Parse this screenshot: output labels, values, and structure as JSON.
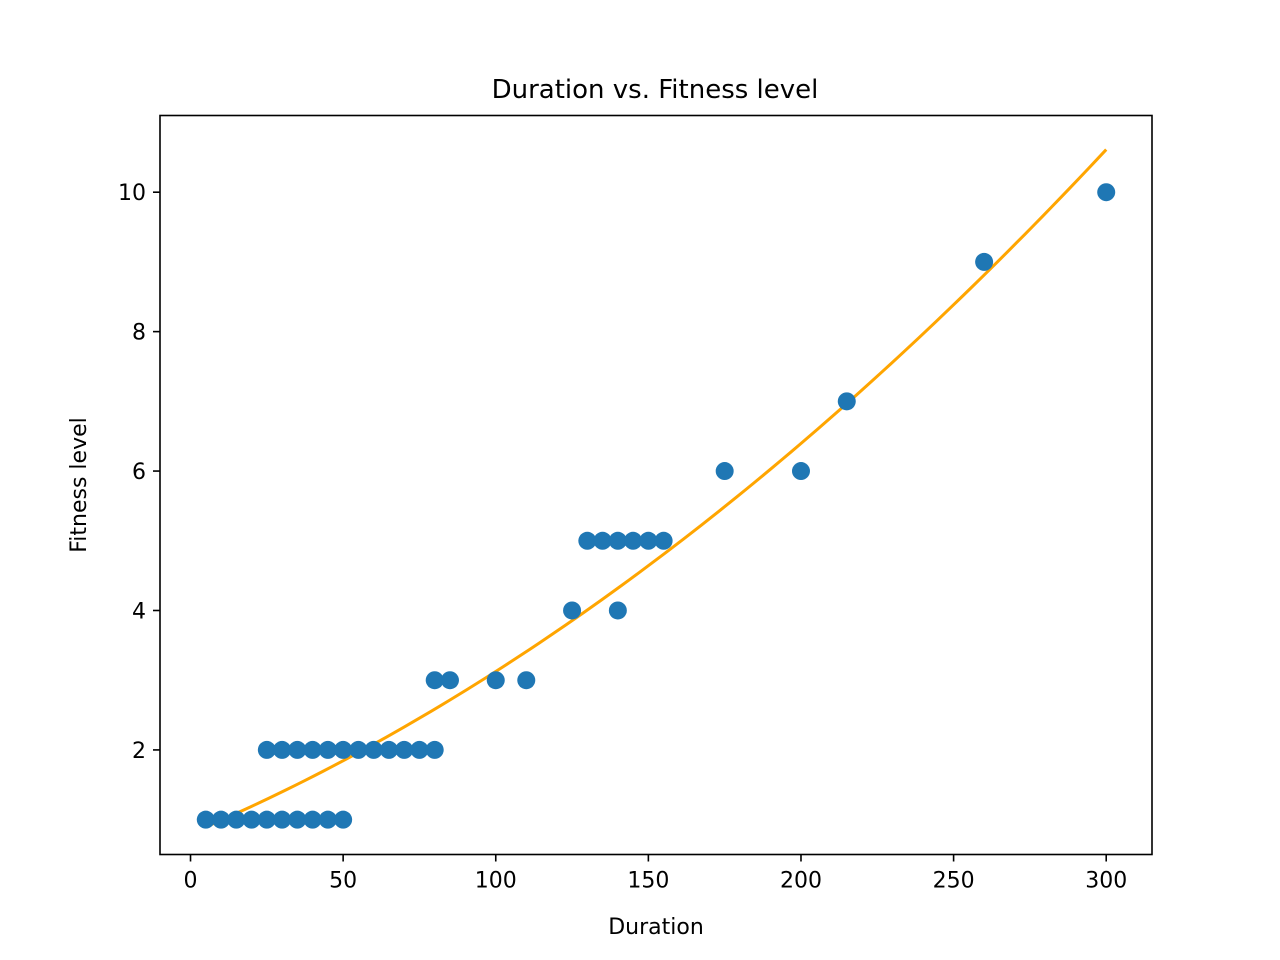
{
  "chart_data": {
    "type": "scatter",
    "title": "Duration vs. Fitness level",
    "xlabel": "Duration",
    "ylabel": "Fitness level",
    "xlim": [
      -10,
      315
    ],
    "ylim": [
      0.5,
      11.1
    ],
    "x_ticks": [
      0,
      50,
      100,
      150,
      200,
      250,
      300
    ],
    "y_ticks": [
      2,
      4,
      6,
      8,
      10
    ],
    "grid": false,
    "series": [
      {
        "kind": "scatter",
        "color": "#1f77b4",
        "points": [
          [
            5,
            1
          ],
          [
            10,
            1
          ],
          [
            15,
            1
          ],
          [
            20,
            1
          ],
          [
            25,
            1
          ],
          [
            30,
            1
          ],
          [
            35,
            1
          ],
          [
            40,
            1
          ],
          [
            45,
            1
          ],
          [
            50,
            1
          ],
          [
            25,
            2
          ],
          [
            30,
            2
          ],
          [
            35,
            2
          ],
          [
            40,
            2
          ],
          [
            45,
            2
          ],
          [
            50,
            2
          ],
          [
            55,
            2
          ],
          [
            60,
            2
          ],
          [
            65,
            2
          ],
          [
            70,
            2
          ],
          [
            75,
            2
          ],
          [
            80,
            2
          ],
          [
            80,
            3
          ],
          [
            85,
            3
          ],
          [
            100,
            3
          ],
          [
            110,
            3
          ],
          [
            125,
            4
          ],
          [
            140,
            4
          ],
          [
            130,
            5
          ],
          [
            135,
            5
          ],
          [
            140,
            5
          ],
          [
            145,
            5
          ],
          [
            150,
            5
          ],
          [
            155,
            5
          ],
          [
            175,
            6
          ],
          [
            200,
            6
          ],
          [
            215,
            7
          ],
          [
            260,
            9
          ],
          [
            300,
            10
          ]
        ]
      },
      {
        "kind": "line",
        "color": "#ffa500",
        "fit": "quadratic",
        "x_range": [
          5,
          300
        ],
        "points": [
          [
            5,
            0.9
          ],
          [
            50,
            1.85
          ],
          [
            100,
            3.1
          ],
          [
            150,
            4.65
          ],
          [
            200,
            6.4
          ],
          [
            250,
            8.4
          ],
          [
            300,
            10.6
          ]
        ]
      }
    ]
  }
}
